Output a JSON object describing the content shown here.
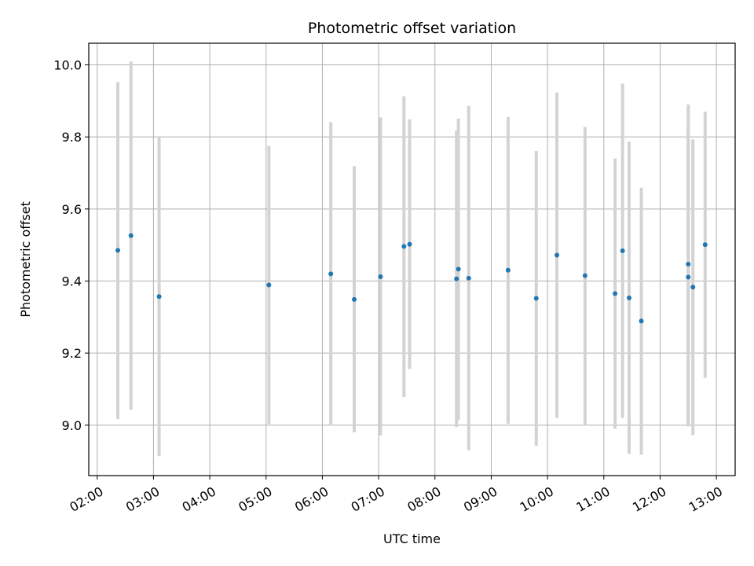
{
  "chart_data": {
    "type": "scatter",
    "title": "Photometric offset variation",
    "xlabel": "UTC time",
    "ylabel": "Photometric offset",
    "x_tick_labels": [
      "02:00",
      "03:00",
      "04:00",
      "05:00",
      "06:00",
      "07:00",
      "08:00",
      "09:00",
      "10:00",
      "11:00",
      "12:00",
      "13:00"
    ],
    "y_tick_labels": [
      "9.0",
      "9.2",
      "9.4",
      "9.6",
      "9.8",
      "10.0"
    ],
    "y_ticks": [
      9.0,
      9.2,
      9.4,
      9.6,
      9.8,
      10.0
    ],
    "xlim": [
      "01:51",
      "13:20"
    ],
    "ylim": [
      8.86,
      10.06
    ],
    "grid": true,
    "colors": {
      "point": "#1f77b4",
      "errorbar": "#d3d3d3",
      "grid": "#b0b0b0"
    },
    "points": [
      {
        "x": "02:22",
        "y": 9.485,
        "low": 9.017,
        "high": 9.952
      },
      {
        "x": "02:36",
        "y": 9.526,
        "low": 9.043,
        "high": 10.009
      },
      {
        "x": "03:06",
        "y": 9.357,
        "low": 8.914,
        "high": 9.8
      },
      {
        "x": "05:03",
        "y": 9.389,
        "low": 9.003,
        "high": 9.775
      },
      {
        "x": "06:09",
        "y": 9.42,
        "low": 8.999,
        "high": 9.841
      },
      {
        "x": "06:34",
        "y": 9.349,
        "low": 8.98,
        "high": 9.719
      },
      {
        "x": "07:02",
        "y": 9.412,
        "low": 8.971,
        "high": 9.854
      },
      {
        "x": "07:27",
        "y": 9.496,
        "low": 9.078,
        "high": 9.913
      },
      {
        "x": "07:33",
        "y": 9.502,
        "low": 9.156,
        "high": 9.849
      },
      {
        "x": "08:23",
        "y": 9.406,
        "low": 8.995,
        "high": 9.818
      },
      {
        "x": "08:25",
        "y": 9.433,
        "low": 9.014,
        "high": 9.851
      },
      {
        "x": "08:36",
        "y": 9.408,
        "low": 8.93,
        "high": 9.886
      },
      {
        "x": "09:18",
        "y": 9.43,
        "low": 9.004,
        "high": 9.855
      },
      {
        "x": "09:48",
        "y": 9.352,
        "low": 8.943,
        "high": 9.761
      },
      {
        "x": "10:10",
        "y": 9.472,
        "low": 9.02,
        "high": 9.923
      },
      {
        "x": "10:40",
        "y": 9.415,
        "low": 9.002,
        "high": 9.828
      },
      {
        "x": "11:12",
        "y": 9.365,
        "low": 8.99,
        "high": 9.74
      },
      {
        "x": "11:20",
        "y": 9.484,
        "low": 9.02,
        "high": 9.948
      },
      {
        "x": "11:27",
        "y": 9.353,
        "low": 8.92,
        "high": 9.787
      },
      {
        "x": "11:40",
        "y": 9.289,
        "low": 8.918,
        "high": 9.659
      },
      {
        "x": "12:30",
        "y": 9.447,
        "low": 8.997,
        "high": 9.89
      },
      {
        "x": "12:30",
        "y": 9.411,
        "low": 8.997,
        "high": 9.826
      },
      {
        "x": "12:35",
        "y": 9.383,
        "low": 8.972,
        "high": 9.793
      },
      {
        "x": "12:48",
        "y": 9.501,
        "low": 9.131,
        "high": 9.87
      }
    ]
  }
}
